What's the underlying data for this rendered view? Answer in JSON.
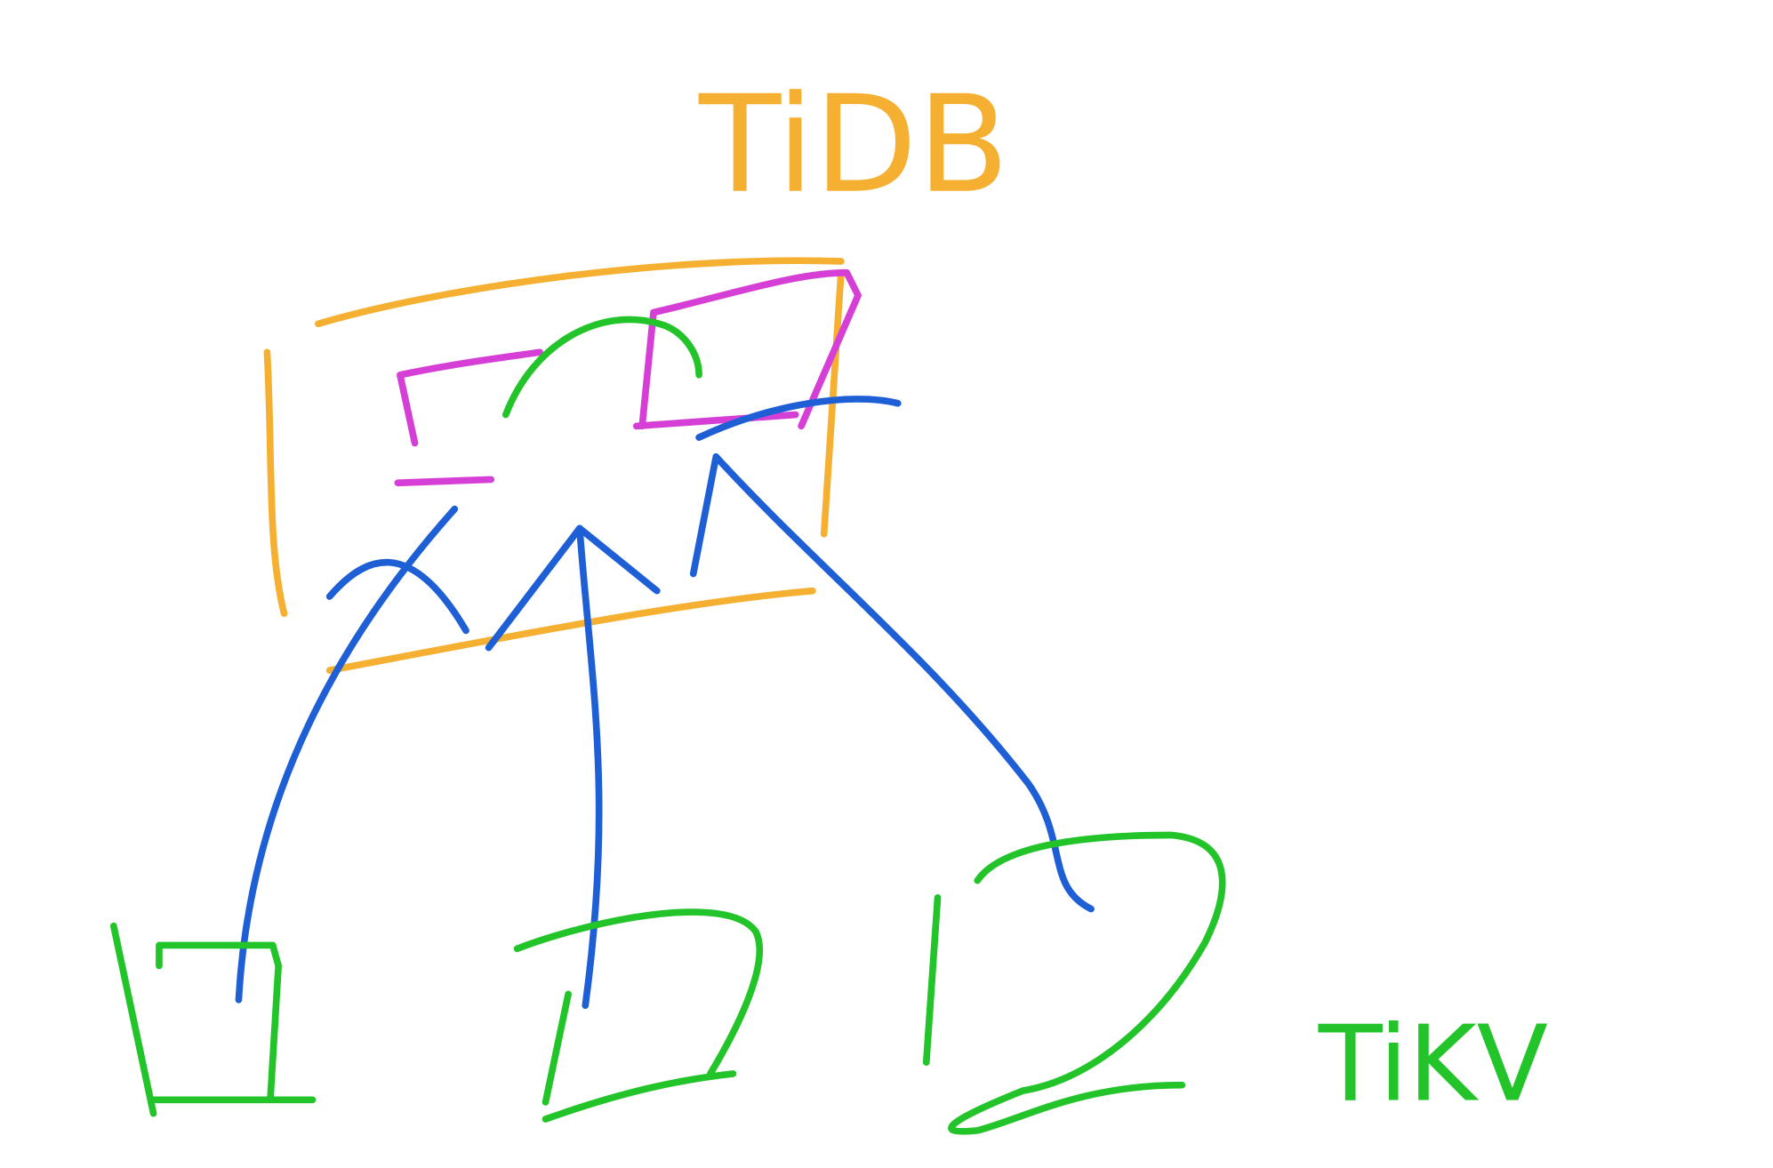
{
  "labels": {
    "top": "TiDB",
    "bottom": "TiKV"
  }
}
